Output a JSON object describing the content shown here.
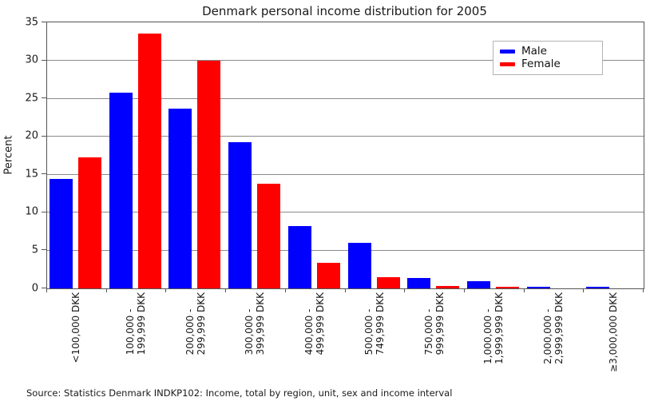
{
  "source_note": "Source: Statistics Denmark INDKP102: Income, total by region, unit, sex and income interval",
  "chart_data": {
    "type": "bar",
    "title": "Denmark personal income distribution for 2005",
    "xlabel": "",
    "ylabel": "Percent",
    "ylim": [
      0,
      35
    ],
    "yticks": [
      0,
      5,
      10,
      15,
      20,
      25,
      30,
      35
    ],
    "grid": true,
    "legend_position": "upper right",
    "categories": [
      "<100,000 DKK",
      "100,000 -\n199,999 DKK",
      "200,000 -\n299,999 DKK",
      "300,000 -\n399,999 DKK",
      "400,000 -\n499,999 DKK",
      "500,000 -\n749,999 DKK",
      "750,000 -\n999,999 DKK",
      "1,000,000 -\n1,999,999 DKK",
      "2,000,000 -\n2,999,999 DKK",
      "≥3,000,000 DKK"
    ],
    "series": [
      {
        "name": "Male",
        "color": "#0000ff",
        "values": [
          14.4,
          25.7,
          23.7,
          19.2,
          8.2,
          6.0,
          1.4,
          1.0,
          0.25,
          0.25
        ]
      },
      {
        "name": "Female",
        "color": "#ff0000",
        "values": [
          17.2,
          33.5,
          30.0,
          13.8,
          3.4,
          1.5,
          0.3,
          0.2,
          0.0,
          0.0
        ]
      }
    ]
  }
}
